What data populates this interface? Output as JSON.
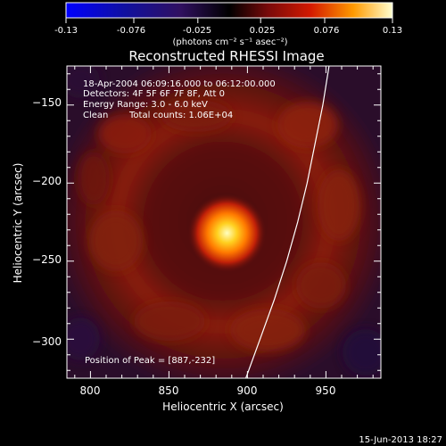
{
  "title": "Reconstructed RHESSI Image",
  "colorbar": {
    "unit_label": "(photons cm⁻² s⁻¹ asec⁻²)",
    "ticks": [
      "-0.13",
      "-0.076",
      "-0.025",
      "0.025",
      "0.076",
      "0.13"
    ],
    "range": [
      -0.13,
      0.13
    ]
  },
  "info": {
    "time": "18-Apr-2004 06:09:16.000 to 06:12:00.000",
    "detectors": "Detectors: 4F 5F 6F 7F 8F, Att 0",
    "energy": "Energy Range: 3.0 - 6.0 keV",
    "clean": "Clean",
    "counts": "Total counts: 1.06E+04"
  },
  "peak_label": "Position of Peak = [887,-232]",
  "footer_date": "15-Jun-2013 18:27",
  "chart_data": {
    "type": "heatmap",
    "title": "Reconstructed RHESSI Image",
    "xlabel": "Heliocentric X (arcsec)",
    "ylabel": "Heliocentric Y (arcsec)",
    "xlim": [
      785,
      985
    ],
    "ylim": [
      -325,
      -125
    ],
    "x_ticks": [
      800,
      850,
      900,
      950
    ],
    "y_ticks": [
      -150,
      -200,
      -250,
      -300
    ],
    "x_tick_labels": [
      "800",
      "850",
      "900",
      "950"
    ],
    "y_tick_labels": [
      "−150",
      "−200",
      "−250",
      "−300"
    ],
    "peak_position": [
      887,
      -232
    ],
    "limb_curve": [
      [
        899,
        -325
      ],
      [
        908,
        -300
      ],
      [
        917,
        -275
      ],
      [
        925,
        -250
      ],
      [
        932,
        -225
      ],
      [
        938,
        -200
      ],
      [
        943,
        -175
      ],
      [
        948,
        -150
      ],
      [
        952,
        -125
      ]
    ],
    "colormap": "hot-blue",
    "colors": {
      "peak": "#ffffb0",
      "core": "#ff8a00",
      "ring": "#7a1a0a",
      "background": "#3a0b10",
      "negative": "#2a0a3a"
    }
  }
}
